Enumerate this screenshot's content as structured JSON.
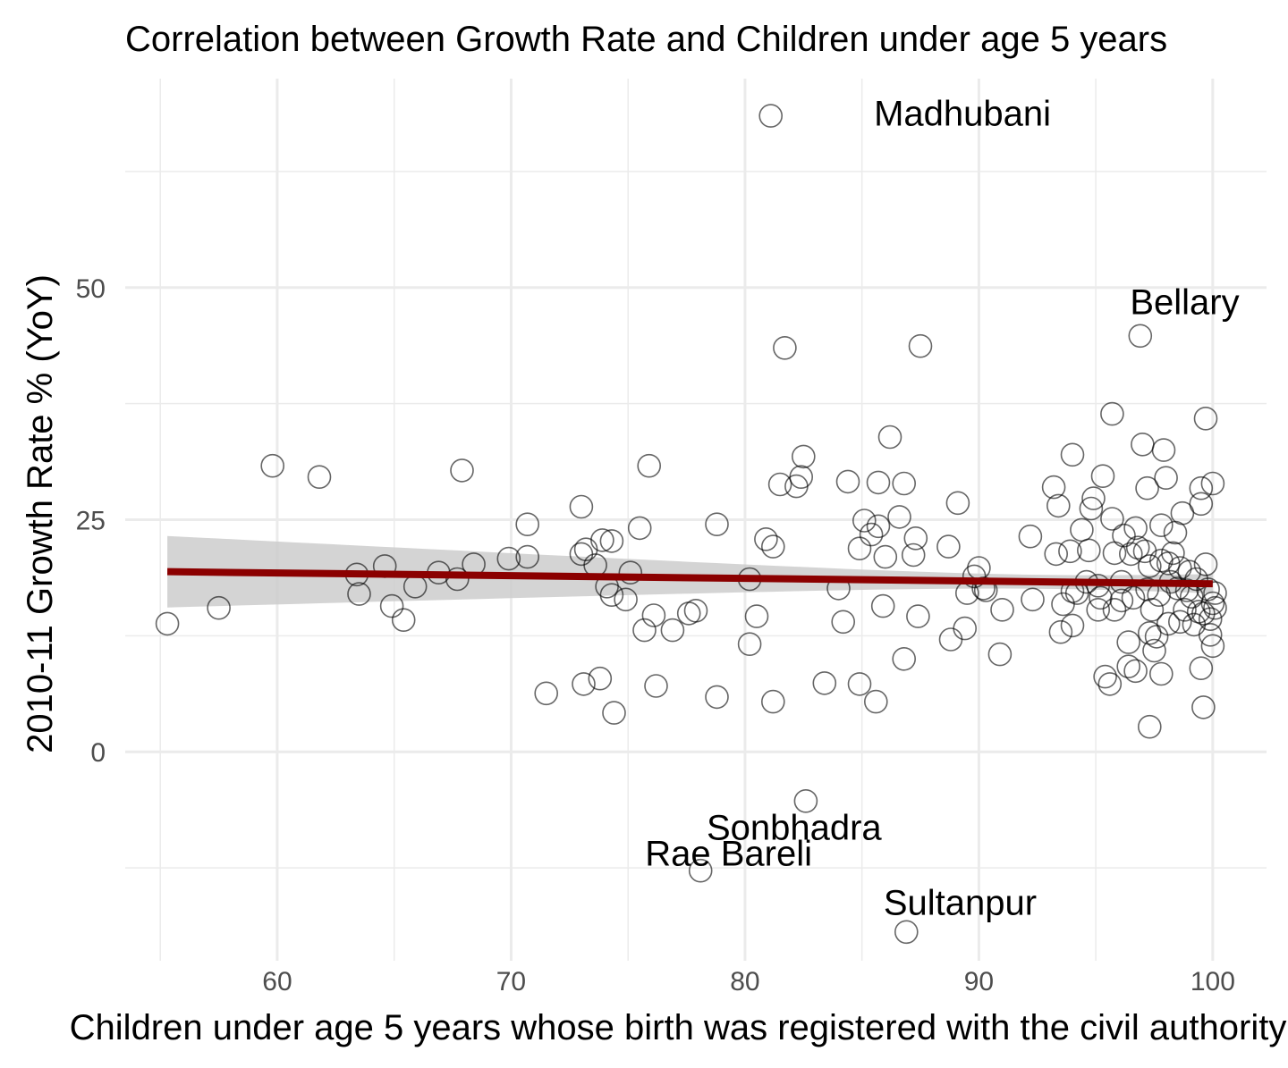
{
  "chart_data": {
    "type": "scatter",
    "title": "Correlation between Growth Rate and Children under age 5 years",
    "xlabel": "Children under age 5 years whose birth was registered with the civil authority",
    "ylabel": "2010-11 Growth Rate % (YoY)",
    "xlim": [
      53.5,
      102.3
    ],
    "ylim": [
      -22.5,
      72.5
    ],
    "xticks": [
      60,
      70,
      80,
      90,
      100
    ],
    "yticks": [
      0,
      25,
      50
    ],
    "grid": true,
    "legend": "none",
    "point_color": "#000000",
    "trend": {
      "method": "lm",
      "color": "#8b0000",
      "ribbon_color": "#cccccc",
      "x": [
        55.3,
        100
      ],
      "y": [
        19.4,
        18.1
      ],
      "lower": [
        15.6,
        17.1
      ],
      "upper": [
        23.3,
        19.2
      ]
    },
    "annotations": [
      {
        "label": "Madhubani",
        "x": 89.3,
        "y": 68.8
      },
      {
        "label": "Bellary",
        "x": 98.8,
        "y": 48.5
      },
      {
        "label": "Sonbhadra",
        "x": 82.1,
        "y": -8.1
      },
      {
        "label": "Rae Bareli",
        "x": 79.3,
        "y": -10.9
      },
      {
        "label": "Sultanpur",
        "x": 89.2,
        "y": -16.2
      }
    ],
    "points": [
      [
        55.3,
        13.8
      ],
      [
        57.5,
        15.5
      ],
      [
        59.8,
        30.8
      ],
      [
        61.8,
        29.6
      ],
      [
        63.4,
        19.1
      ],
      [
        63.5,
        17.0
      ],
      [
        64.6,
        20.0
      ],
      [
        64.9,
        15.7
      ],
      [
        65.4,
        14.2
      ],
      [
        65.9,
        17.8
      ],
      [
        66.9,
        19.3
      ],
      [
        67.7,
        18.6
      ],
      [
        67.9,
        30.3
      ],
      [
        68.4,
        20.2
      ],
      [
        69.9,
        20.8
      ],
      [
        70.7,
        24.5
      ],
      [
        70.7,
        21.0
      ],
      [
        71.5,
        6.3
      ],
      [
        73.0,
        26.4
      ],
      [
        73.0,
        21.3
      ],
      [
        73.1,
        7.3
      ],
      [
        73.2,
        21.8
      ],
      [
        73.6,
        20.1
      ],
      [
        73.8,
        7.9
      ],
      [
        73.9,
        22.8
      ],
      [
        74.1,
        17.8
      ],
      [
        74.3,
        16.9
      ],
      [
        74.3,
        22.7
      ],
      [
        74.4,
        4.2
      ],
      [
        74.9,
        16.4
      ],
      [
        75.1,
        19.3
      ],
      [
        75.5,
        24.1
      ],
      [
        75.7,
        13.1
      ],
      [
        75.9,
        30.8
      ],
      [
        76.1,
        14.7
      ],
      [
        76.2,
        7.1
      ],
      [
        76.9,
        13.1
      ],
      [
        77.6,
        14.9
      ],
      [
        77.9,
        15.2
      ],
      [
        78.1,
        -12.8
      ],
      [
        78.8,
        24.5
      ],
      [
        78.8,
        5.9
      ],
      [
        80.2,
        11.6
      ],
      [
        80.2,
        18.6
      ],
      [
        80.5,
        14.6
      ],
      [
        80.9,
        22.9
      ],
      [
        81.1,
        68.5
      ],
      [
        81.2,
        22.1
      ],
      [
        81.2,
        5.4
      ],
      [
        81.5,
        28.8
      ],
      [
        81.7,
        43.5
      ],
      [
        82.2,
        28.6
      ],
      [
        82.4,
        29.6
      ],
      [
        82.5,
        31.8
      ],
      [
        82.6,
        -5.3
      ],
      [
        83.4,
        7.4
      ],
      [
        84.0,
        17.6
      ],
      [
        84.2,
        14.0
      ],
      [
        84.4,
        29.1
      ],
      [
        84.9,
        21.9
      ],
      [
        84.9,
        7.3
      ],
      [
        85.1,
        24.9
      ],
      [
        85.4,
        23.4
      ],
      [
        85.6,
        5.4
      ],
      [
        85.7,
        24.3
      ],
      [
        85.7,
        29.0
      ],
      [
        85.9,
        15.7
      ],
      [
        86.0,
        21.0
      ],
      [
        86.2,
        33.9
      ],
      [
        86.6,
        25.3
      ],
      [
        86.8,
        28.9
      ],
      [
        86.8,
        10.0
      ],
      [
        86.9,
        -19.4
      ],
      [
        87.2,
        21.2
      ],
      [
        87.3,
        23.0
      ],
      [
        87.4,
        14.6
      ],
      [
        87.5,
        43.7
      ],
      [
        88.7,
        22.1
      ],
      [
        88.8,
        12.1
      ],
      [
        89.1,
        26.8
      ],
      [
        89.4,
        13.3
      ],
      [
        89.5,
        17.1
      ],
      [
        89.8,
        18.9
      ],
      [
        90.0,
        19.8
      ],
      [
        90.2,
        17.6
      ],
      [
        90.3,
        17.4
      ],
      [
        90.9,
        10.5
      ],
      [
        91.0,
        15.3
      ],
      [
        92.2,
        23.2
      ],
      [
        92.3,
        16.4
      ],
      [
        93.2,
        28.5
      ],
      [
        93.3,
        21.3
      ],
      [
        93.4,
        26.5
      ],
      [
        93.5,
        12.9
      ],
      [
        93.6,
        15.9
      ],
      [
        93.9,
        21.6
      ],
      [
        94.0,
        32.0
      ],
      [
        94.0,
        13.6
      ],
      [
        94.0,
        17.3
      ],
      [
        94.2,
        17.1
      ],
      [
        94.4,
        23.9
      ],
      [
        94.6,
        18.3
      ],
      [
        94.7,
        21.7
      ],
      [
        94.8,
        26.2
      ],
      [
        94.9,
        27.3
      ],
      [
        95.1,
        15.3
      ],
      [
        95.1,
        17.9
      ],
      [
        95.2,
        16.6
      ],
      [
        95.3,
        29.7
      ],
      [
        95.4,
        8.1
      ],
      [
        95.6,
        7.3
      ],
      [
        95.7,
        25.1
      ],
      [
        95.7,
        36.4
      ],
      [
        95.8,
        21.4
      ],
      [
        95.8,
        15.3
      ],
      [
        96.1,
        18.3
      ],
      [
        96.1,
        16.3
      ],
      [
        96.2,
        23.3
      ],
      [
        96.4,
        9.2
      ],
      [
        96.4,
        11.8
      ],
      [
        96.5,
        21.3
      ],
      [
        96.6,
        16.6
      ],
      [
        96.7,
        24.1
      ],
      [
        96.7,
        8.7
      ],
      [
        96.8,
        22.0
      ],
      [
        96.9,
        44.8
      ],
      [
        97.0,
        33.1
      ],
      [
        97.1,
        21.6
      ],
      [
        97.2,
        17.5
      ],
      [
        97.2,
        28.4
      ],
      [
        97.3,
        12.8
      ],
      [
        97.3,
        2.7
      ],
      [
        97.3,
        20.0
      ],
      [
        97.4,
        15.3
      ],
      [
        97.5,
        10.9
      ],
      [
        97.6,
        12.4
      ],
      [
        97.7,
        16.9
      ],
      [
        97.8,
        24.4
      ],
      [
        97.8,
        8.4
      ],
      [
        97.8,
        20.6
      ],
      [
        97.9,
        32.5
      ],
      [
        98.0,
        29.5
      ],
      [
        98.1,
        13.8
      ],
      [
        98.1,
        20.3
      ],
      [
        98.2,
        18.3
      ],
      [
        98.3,
        21.4
      ],
      [
        98.4,
        23.6
      ],
      [
        98.5,
        17.6
      ],
      [
        98.6,
        14.0
      ],
      [
        98.6,
        19.8
      ],
      [
        98.7,
        25.7
      ],
      [
        98.8,
        15.3
      ],
      [
        98.9,
        17.4
      ],
      [
        99.0,
        19.4
      ],
      [
        99.1,
        16.7
      ],
      [
        99.2,
        13.7
      ],
      [
        99.3,
        18.6
      ],
      [
        99.4,
        15.1
      ],
      [
        99.5,
        9.0
      ],
      [
        99.5,
        26.7
      ],
      [
        99.5,
        28.4
      ],
      [
        99.6,
        4.8
      ],
      [
        99.6,
        14.9
      ],
      [
        99.7,
        20.2
      ],
      [
        99.7,
        35.9
      ],
      [
        99.8,
        17.5
      ],
      [
        99.9,
        12.6
      ],
      [
        99.9,
        14.3
      ],
      [
        100.0,
        11.4
      ],
      [
        100.0,
        28.9
      ],
      [
        100.0,
        16.0
      ],
      [
        100.1,
        17.1
      ],
      [
        100.1,
        15.5
      ]
    ]
  }
}
